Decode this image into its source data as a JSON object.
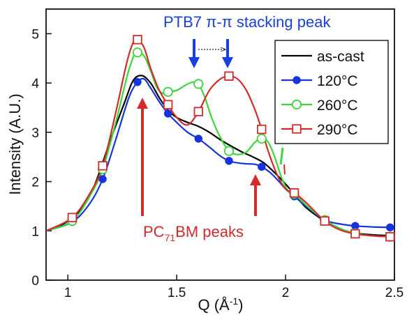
{
  "chart_data": {
    "type": "line",
    "title": "",
    "xlabel": "Q (Å",
    "xlabel_sup": "-1",
    "xlabel_end": ")",
    "ylabel": "Intensity (A.U.)",
    "xlim": [
      0.9,
      2.5
    ],
    "ylim": [
      0,
      5.5
    ],
    "xticks": [
      1,
      1.5,
      2,
      2.5
    ],
    "xtick_labels": [
      "1",
      "1.5",
      "2",
      "2.5"
    ],
    "yticks": [
      0,
      1,
      2,
      3,
      4,
      5
    ],
    "ytick_labels": [
      "0",
      "1",
      "2",
      "3",
      "4",
      "5"
    ],
    "grid": false,
    "legend_position": "top-right",
    "series": [
      {
        "name": "as-cast",
        "color": "#000000",
        "marker": "none",
        "x": [
          0.9,
          1.0,
          1.1,
          1.2,
          1.26,
          1.3,
          1.34,
          1.38,
          1.42,
          1.46,
          1.5,
          1.55,
          1.6,
          1.65,
          1.7,
          1.75,
          1.8,
          1.85,
          1.9,
          1.95,
          2.0,
          2.05,
          2.1,
          2.2,
          2.3,
          2.4,
          2.5
        ],
        "y": [
          1.0,
          1.2,
          1.7,
          2.9,
          3.6,
          4.05,
          4.15,
          4.0,
          3.7,
          3.45,
          3.3,
          3.2,
          3.12,
          3.0,
          2.85,
          2.72,
          2.6,
          2.5,
          2.38,
          2.18,
          1.95,
          1.7,
          1.45,
          1.15,
          0.97,
          0.92,
          0.9
        ]
      },
      {
        "name": "120°C",
        "color": "#1533e0",
        "marker": "filled-circle",
        "x": [
          0.9,
          1.02,
          1.1,
          1.16,
          1.22,
          1.28,
          1.32,
          1.35,
          1.38,
          1.42,
          1.46,
          1.5,
          1.55,
          1.6,
          1.65,
          1.7,
          1.74,
          1.78,
          1.82,
          1.86,
          1.89,
          1.93,
          1.97,
          2.0,
          2.04,
          2.1,
          2.18,
          2.25,
          2.32,
          2.4,
          2.48
        ],
        "y": [
          1.0,
          1.18,
          1.55,
          2.05,
          2.85,
          3.7,
          4.02,
          4.08,
          3.9,
          3.62,
          3.38,
          3.2,
          3.0,
          2.87,
          2.7,
          2.52,
          2.42,
          2.38,
          2.36,
          2.35,
          2.3,
          2.18,
          2.0,
          1.85,
          1.7,
          1.48,
          1.22,
          1.14,
          1.1,
          1.08,
          1.07
        ],
        "markers_x": [
          1.02,
          1.16,
          1.32,
          1.46,
          1.6,
          1.74,
          1.89,
          2.04,
          2.18,
          2.32,
          2.48
        ],
        "markers_y": [
          1.18,
          2.05,
          4.02,
          3.38,
          2.87,
          2.42,
          2.3,
          1.7,
          1.22,
          1.1,
          1.07
        ]
      },
      {
        "name": "260°C",
        "color": "#3ad63a",
        "marker": "open-circle",
        "x": [
          0.9,
          1.02,
          1.1,
          1.16,
          1.22,
          1.27,
          1.3,
          1.32,
          1.35,
          1.38,
          1.41,
          1.44,
          1.46,
          1.5,
          1.55,
          1.58,
          1.6,
          1.63,
          1.66,
          1.7,
          1.74,
          1.78,
          1.82,
          1.86,
          1.89,
          1.92,
          1.95,
          1.98,
          2.01,
          2.04,
          2.1,
          2.18,
          2.25,
          2.32,
          2.4,
          2.48
        ],
        "y": [
          1.0,
          1.2,
          1.7,
          2.25,
          3.2,
          4.1,
          4.52,
          4.62,
          4.55,
          4.25,
          3.9,
          3.78,
          3.82,
          3.85,
          3.98,
          4.02,
          3.98,
          3.7,
          3.3,
          2.9,
          2.62,
          2.55,
          2.6,
          2.8,
          2.87,
          2.8,
          2.5,
          2.1,
          1.82,
          1.75,
          1.5,
          1.22,
          1.05,
          0.95,
          0.9,
          0.88
        ],
        "markers_x": [
          1.02,
          1.16,
          1.32,
          1.46,
          1.6,
          1.74,
          1.89,
          2.04,
          2.18,
          2.32,
          2.48
        ],
        "markers_y": [
          1.2,
          2.25,
          4.62,
          3.82,
          3.98,
          2.62,
          2.87,
          1.75,
          1.22,
          0.95,
          0.88
        ]
      },
      {
        "name": "290°C",
        "color": "#d42a2a",
        "marker": "open-square",
        "x": [
          0.9,
          1.02,
          1.1,
          1.16,
          1.22,
          1.27,
          1.3,
          1.32,
          1.35,
          1.38,
          1.42,
          1.46,
          1.5,
          1.55,
          1.6,
          1.65,
          1.7,
          1.74,
          1.78,
          1.82,
          1.86,
          1.89,
          1.92,
          1.96,
          2.0,
          2.04,
          2.1,
          2.18,
          2.25,
          2.32,
          2.4,
          2.48
        ],
        "y": [
          1.0,
          1.27,
          1.75,
          2.32,
          3.4,
          4.4,
          4.82,
          4.88,
          4.72,
          4.3,
          3.85,
          3.56,
          3.3,
          3.15,
          3.42,
          3.85,
          4.08,
          4.14,
          4.08,
          3.85,
          3.45,
          3.06,
          2.62,
          2.15,
          1.85,
          1.77,
          1.55,
          1.2,
          1.02,
          0.94,
          0.9,
          0.88
        ],
        "markers_x": [
          1.02,
          1.16,
          1.32,
          1.46,
          1.6,
          1.74,
          1.89,
          2.04,
          2.18,
          2.32,
          2.48
        ],
        "markers_y": [
          1.27,
          2.32,
          4.88,
          3.56,
          3.42,
          4.14,
          3.06,
          1.77,
          1.2,
          0.94,
          0.88
        ]
      }
    ],
    "annotations": {
      "blue_label": "PTB7 π-π stacking peak",
      "red_label_pre": "PC",
      "red_label_sub": "71",
      "red_label_post": "BM peaks",
      "blue_color": "#1a3fe0",
      "red_color": "#d42a2a",
      "green_color": "#3ad63a"
    }
  }
}
